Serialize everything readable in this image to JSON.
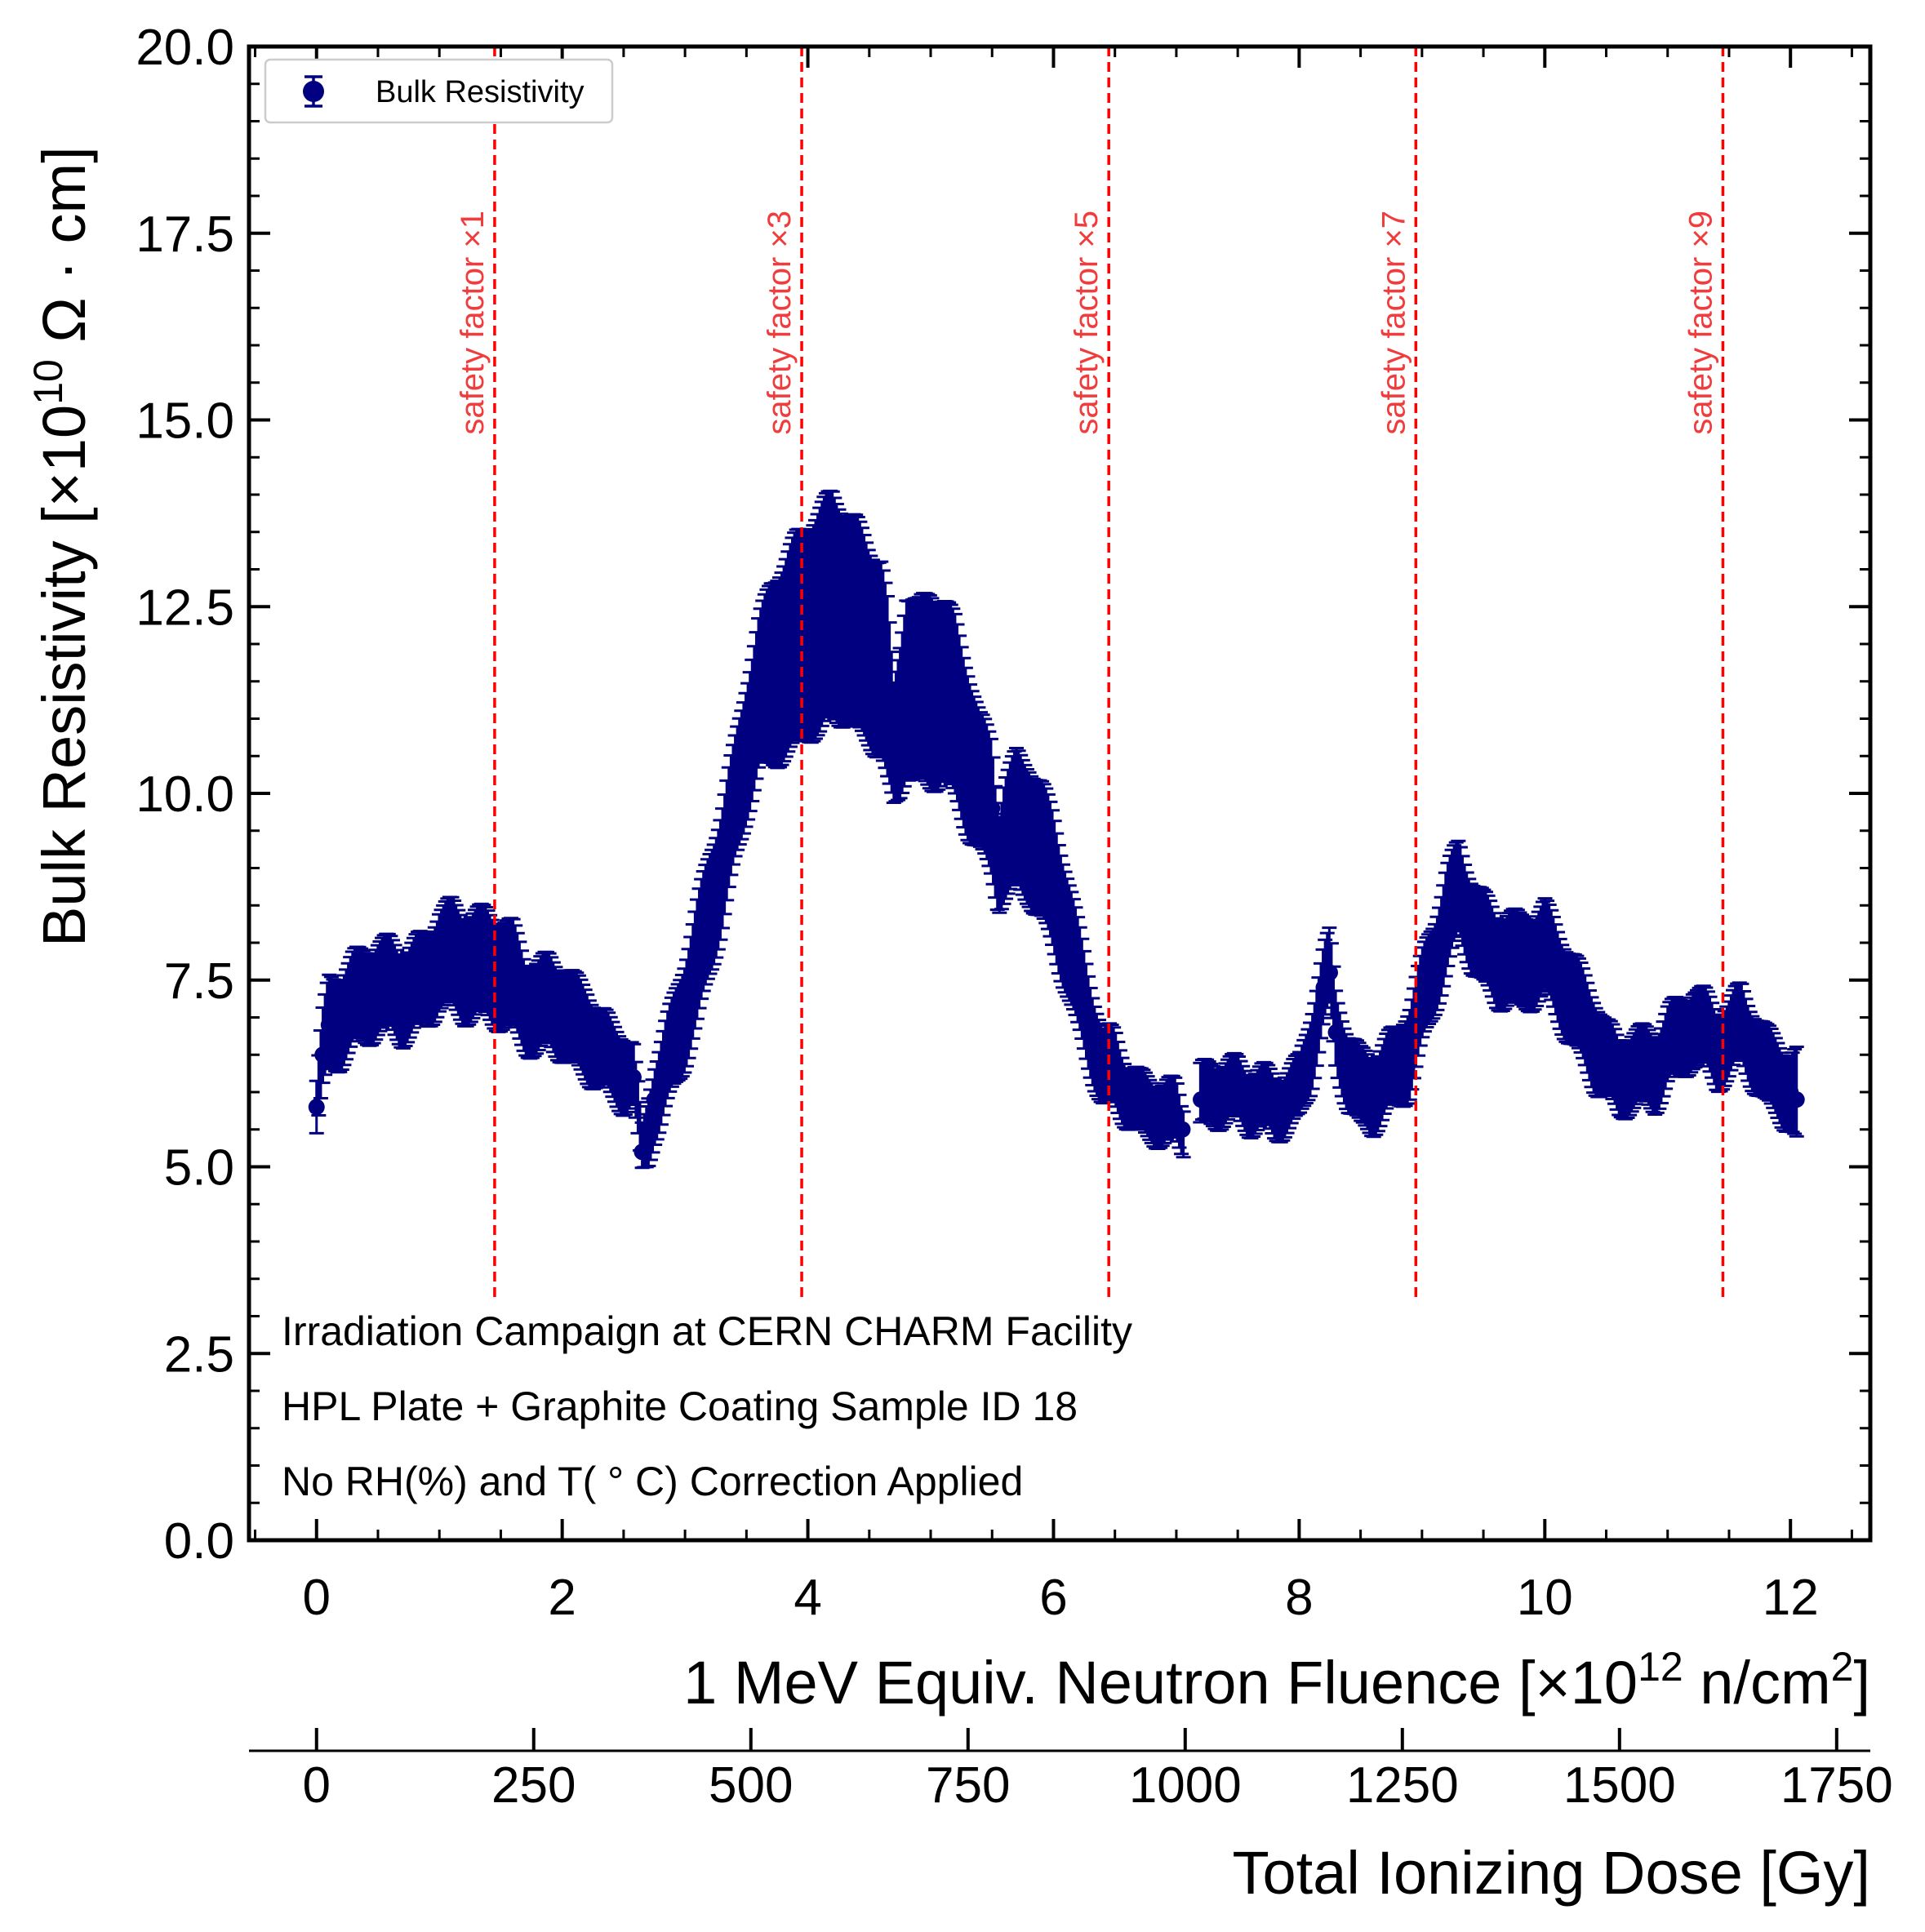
{
  "chart_data": {
    "type": "scatter",
    "title": "",
    "xlabel": "1 MeV Equiv. Neutron Fluence [×10",
    "xlabel_exp": "12",
    "xlabel_unit": " n/cm",
    "xlabel_unit_exp": "2",
    "xlabel_close": "]",
    "ylabel": "Bulk Resistivity [×10",
    "ylabel_exp": "10",
    "ylabel_unit": " Ω · cm]",
    "xlim": [
      -0.55,
      12.65
    ],
    "ylim": [
      0,
      20
    ],
    "grid": false,
    "x_ticks": [
      "0",
      "2",
      "4",
      "6",
      "8",
      "10",
      "12"
    ],
    "x_tick_values": [
      0,
      2,
      4,
      6,
      8,
      10,
      12
    ],
    "y_ticks": [
      "0.0",
      "2.5",
      "5.0",
      "7.5",
      "10.0",
      "12.5",
      "15.0",
      "17.5",
      "20.0"
    ],
    "y_tick_values": [
      0,
      2.5,
      5,
      7.5,
      10,
      12.5,
      15,
      17.5,
      20
    ],
    "secondary_x_axis": {
      "label": "Total Ionizing Dose [Gy]",
      "ticks": [
        "0",
        "250",
        "500",
        "750",
        "1000",
        "1250",
        "1500",
        "1750"
      ],
      "tick_values": [
        0,
        250,
        500,
        750,
        1000,
        1250,
        1500,
        1750
      ],
      "gy_per_unit_fluence": 141.4
    },
    "legend": {
      "entries": [
        "Bulk Resistivity"
      ],
      "position": "top-left"
    },
    "series": [
      {
        "name": "Bulk Resistivity",
        "color": "#000080",
        "x": [
          0.0,
          0.05,
          0.1,
          0.2,
          0.3,
          0.4,
          0.5,
          0.6,
          0.7,
          0.8,
          0.9,
          1.0,
          1.1,
          1.2,
          1.3,
          1.4,
          1.5,
          1.6,
          1.7,
          1.8,
          1.9,
          2.0,
          2.1,
          2.2,
          2.3,
          2.4,
          2.5,
          2.58,
          2.65,
          2.7,
          2.75,
          2.8,
          2.9,
          3.0,
          3.1,
          3.2,
          3.3,
          3.4,
          3.5,
          3.6,
          3.7,
          3.8,
          3.9,
          4.0,
          4.1,
          4.2,
          4.3,
          4.4,
          4.5,
          4.6,
          4.65,
          4.7,
          4.75,
          4.8,
          4.9,
          5.0,
          5.1,
          5.2,
          5.3,
          5.4,
          5.5,
          5.55,
          5.6,
          5.7,
          5.8,
          5.9,
          6.0,
          6.1,
          6.2,
          6.3,
          6.4,
          6.5,
          6.6,
          6.7,
          6.8,
          6.9,
          7.0,
          7.05,
          7.2,
          7.3,
          7.4,
          7.5,
          7.6,
          7.7,
          7.8,
          7.9,
          8.0,
          8.1,
          8.2,
          8.25,
          8.3,
          8.4,
          8.5,
          8.6,
          8.7,
          8.8,
          8.9,
          9.0,
          9.1,
          9.2,
          9.3,
          9.4,
          9.5,
          9.6,
          9.7,
          9.8,
          9.9,
          10.0,
          10.1,
          10.2,
          10.3,
          10.4,
          10.5,
          10.6,
          10.7,
          10.8,
          10.9,
          11.0,
          11.1,
          11.2,
          11.3,
          11.4,
          11.5,
          11.6,
          11.7,
          11.8,
          11.9,
          12.0,
          12.05
        ],
        "y": [
          5.8,
          6.5,
          6.9,
          7.0,
          7.2,
          7.3,
          7.4,
          7.4,
          7.3,
          7.4,
          7.5,
          7.8,
          7.8,
          7.7,
          7.7,
          7.7,
          7.6,
          7.5,
          7.2,
          7.1,
          7.2,
          7.1,
          6.9,
          6.8,
          6.6,
          6.4,
          6.3,
          6.2,
          5.2,
          5.5,
          5.9,
          6.1,
          6.6,
          7.1,
          7.7,
          8.4,
          9.0,
          9.8,
          10.6,
          11.3,
          11.6,
          11.8,
          12.0,
          12.2,
          12.3,
          12.5,
          12.4,
          12.2,
          12.0,
          11.8,
          11.3,
          10.6,
          11.0,
          11.5,
          11.3,
          11.4,
          11.4,
          11.1,
          10.6,
          10.1,
          9.8,
          9.1,
          9.4,
          9.6,
          9.5,
          9.2,
          8.8,
          8.2,
          7.5,
          6.9,
          6.3,
          6.3,
          6.0,
          5.8,
          5.8,
          5.7,
          5.7,
          5.5,
          5.9,
          6.0,
          6.0,
          6.0,
          5.9,
          5.9,
          5.8,
          5.9,
          6.0,
          6.6,
          7.4,
          7.6,
          6.8,
          6.3,
          6.0,
          6.0,
          6.2,
          6.3,
          6.6,
          7.2,
          7.7,
          8.3,
          8.7,
          8.3,
          8.0,
          7.8,
          7.8,
          7.7,
          7.8,
          7.9,
          7.6,
          7.3,
          7.0,
          6.7,
          6.4,
          6.2,
          6.3,
          6.3,
          6.3,
          6.6,
          6.7,
          6.9,
          6.8,
          6.6,
          6.7,
          6.9,
          6.6,
          6.3,
          6.2,
          6.0,
          5.9
        ],
        "err": [
          0.35,
          0.5,
          0.6,
          0.6,
          0.6,
          0.6,
          0.6,
          0.6,
          0.6,
          0.6,
          0.6,
          0.65,
          0.7,
          0.7,
          0.7,
          0.7,
          0.7,
          0.7,
          0.6,
          0.6,
          0.6,
          0.6,
          0.6,
          0.6,
          0.5,
          0.5,
          0.5,
          0.4,
          0.3,
          0.45,
          0.5,
          0.55,
          0.6,
          0.7,
          0.8,
          0.8,
          0.8,
          0.8,
          0.9,
          1.0,
          1.2,
          1.3,
          1.4,
          1.4,
          1.5,
          1.5,
          1.4,
          1.4,
          1.3,
          1.3,
          1.2,
          0.8,
          1.0,
          1.2,
          1.2,
          1.3,
          1.2,
          1.2,
          1.1,
          0.9,
          0.9,
          0.6,
          0.8,
          0.9,
          0.9,
          0.9,
          0.9,
          0.8,
          0.7,
          0.6,
          0.5,
          0.5,
          0.4,
          0.4,
          0.4,
          0.4,
          0.4,
          0.3,
          0.4,
          0.4,
          0.4,
          0.4,
          0.4,
          0.4,
          0.4,
          0.4,
          0.4,
          0.5,
          0.5,
          0.5,
          0.5,
          0.5,
          0.5,
          0.5,
          0.5,
          0.5,
          0.6,
          0.6,
          0.6,
          0.7,
          0.6,
          0.6,
          0.6,
          0.6,
          0.6,
          0.6,
          0.6,
          0.6,
          0.6,
          0.6,
          0.6,
          0.6,
          0.5,
          0.5,
          0.5,
          0.5,
          0.5,
          0.5,
          0.5,
          0.5,
          0.5,
          0.5,
          0.5,
          0.5,
          0.5,
          0.5,
          0.5,
          0.5,
          0.6
        ]
      }
    ],
    "vertical_lines": [
      {
        "x": 1.45,
        "label": "safety factor ×1",
        "color": "#ff0000"
      },
      {
        "x": 3.95,
        "label": "safety factor ×3",
        "color": "#ff0000"
      },
      {
        "x": 6.45,
        "label": "safety factor ×5",
        "color": "#ff0000"
      },
      {
        "x": 8.95,
        "label": "safety factor ×7",
        "color": "#ff0000"
      },
      {
        "x": 11.45,
        "label": "safety factor ×9",
        "color": "#ff0000"
      }
    ],
    "annotations": [
      "Irradiation Campaign at CERN CHARM Facility",
      "HPL Plate + Graphite Coating Sample ID 18",
      "No RH(%) and T( ° C) Correction Applied"
    ]
  }
}
